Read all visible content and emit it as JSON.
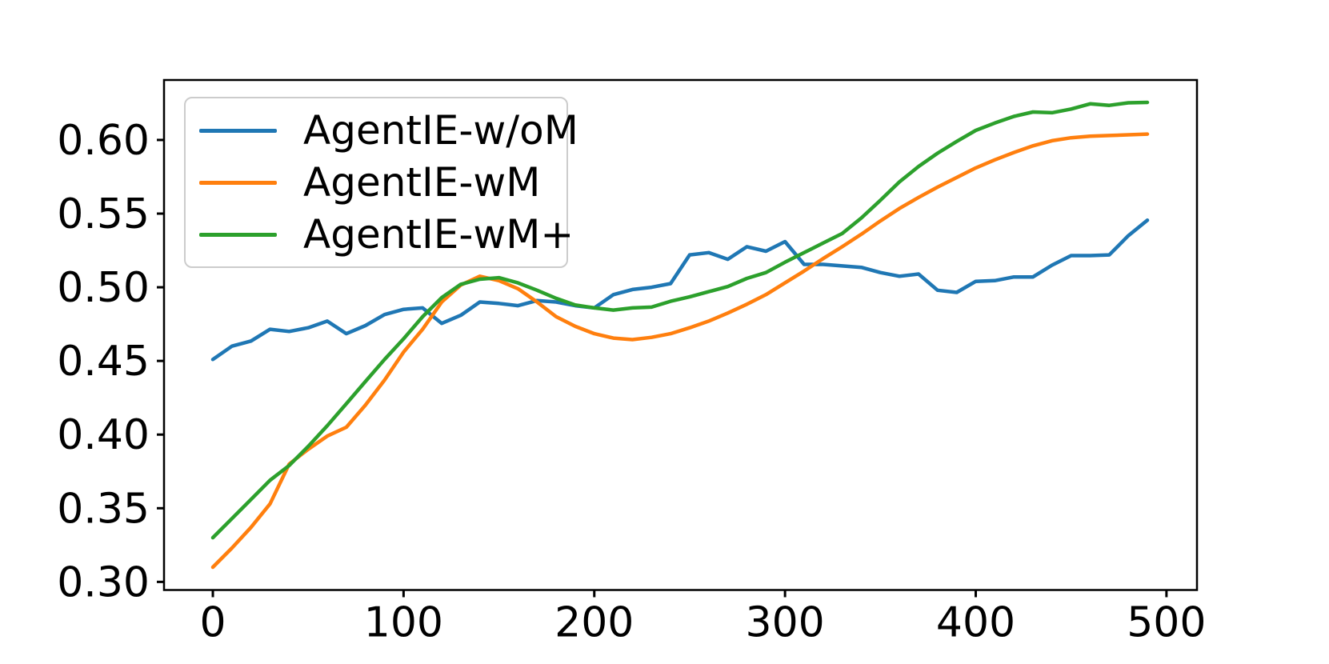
{
  "figure": {
    "background": "#ffffff",
    "spine_color": "#000000",
    "tick_label_color": "#000000"
  },
  "chart_data": {
    "type": "line",
    "title": "",
    "xlabel": "",
    "ylabel": "",
    "grid": false,
    "legend_position": "upper left",
    "line_width": 4.5,
    "xlim": [
      -25.6,
      516
    ],
    "ylim": [
      0.2945,
      0.6407
    ],
    "xticks": [
      {
        "v": 0,
        "label": "0"
      },
      {
        "v": 100,
        "label": "100"
      },
      {
        "v": 200,
        "label": "200"
      },
      {
        "v": 300,
        "label": "300"
      },
      {
        "v": 400,
        "label": "400"
      },
      {
        "v": 500,
        "label": "500"
      }
    ],
    "yticks": [
      {
        "v": 0.3,
        "label": "0.30"
      },
      {
        "v": 0.35,
        "label": "0.35"
      },
      {
        "v": 0.4,
        "label": "0.40"
      },
      {
        "v": 0.45,
        "label": "0.45"
      },
      {
        "v": 0.5,
        "label": "0.50"
      },
      {
        "v": 0.55,
        "label": "0.55"
      },
      {
        "v": 0.6,
        "label": "0.60"
      }
    ],
    "x": [
      0,
      10,
      20,
      30,
      40,
      50,
      60,
      70,
      80,
      90,
      100,
      110,
      120,
      130,
      140,
      150,
      160,
      170,
      180,
      190,
      200,
      210,
      220,
      230,
      240,
      250,
      260,
      270,
      280,
      290,
      300,
      310,
      320,
      330,
      340,
      350,
      360,
      370,
      380,
      390,
      400,
      410,
      420,
      430,
      440,
      450,
      460,
      470,
      480,
      490
    ],
    "series": [
      {
        "name": "AgentIE-w/oM",
        "color": "#1f77b4",
        "values": [
          0.451,
          0.46,
          0.4635,
          0.4715,
          0.47,
          0.4725,
          0.477,
          0.4685,
          0.474,
          0.4815,
          0.485,
          0.486,
          0.4755,
          0.481,
          0.49,
          0.489,
          0.4875,
          0.491,
          0.49,
          0.4875,
          0.486,
          0.495,
          0.4985,
          0.5,
          0.5025,
          0.522,
          0.5235,
          0.519,
          0.5275,
          0.5245,
          0.531,
          0.5155,
          0.5155,
          0.5145,
          0.5135,
          0.51,
          0.5075,
          0.509,
          0.498,
          0.4965,
          0.504,
          0.5045,
          0.507,
          0.507,
          0.515,
          0.5215,
          0.5215,
          0.522,
          0.535,
          0.5455
        ]
      },
      {
        "name": "AgentIE-wM",
        "color": "#ff7f0e",
        "values": [
          0.31,
          0.323,
          0.337,
          0.353,
          0.38,
          0.39,
          0.399,
          0.405,
          0.42,
          0.437,
          0.456,
          0.4715,
          0.49,
          0.5015,
          0.5075,
          0.5045,
          0.499,
          0.49,
          0.48,
          0.4735,
          0.4685,
          0.4655,
          0.4645,
          0.466,
          0.4685,
          0.4725,
          0.477,
          0.4825,
          0.4885,
          0.495,
          0.503,
          0.511,
          0.5195,
          0.5275,
          0.536,
          0.545,
          0.5535,
          0.561,
          0.568,
          0.5745,
          0.581,
          0.5865,
          0.5915,
          0.596,
          0.5995,
          0.6015,
          0.6025,
          0.603,
          0.6035,
          0.604
        ]
      },
      {
        "name": "AgentIE-wM+",
        "color": "#2ca02c",
        "values": [
          0.33,
          0.343,
          0.356,
          0.369,
          0.379,
          0.392,
          0.406,
          0.421,
          0.436,
          0.451,
          0.465,
          0.48,
          0.493,
          0.502,
          0.5055,
          0.5065,
          0.503,
          0.498,
          0.4925,
          0.488,
          0.486,
          0.4845,
          0.486,
          0.4865,
          0.4905,
          0.4935,
          0.497,
          0.5005,
          0.506,
          0.51,
          0.517,
          0.5235,
          0.53,
          0.5365,
          0.547,
          0.559,
          0.5715,
          0.582,
          0.591,
          0.599,
          0.6065,
          0.6115,
          0.616,
          0.619,
          0.6185,
          0.621,
          0.6245,
          0.6235,
          0.6252,
          0.6255
        ]
      }
    ]
  }
}
